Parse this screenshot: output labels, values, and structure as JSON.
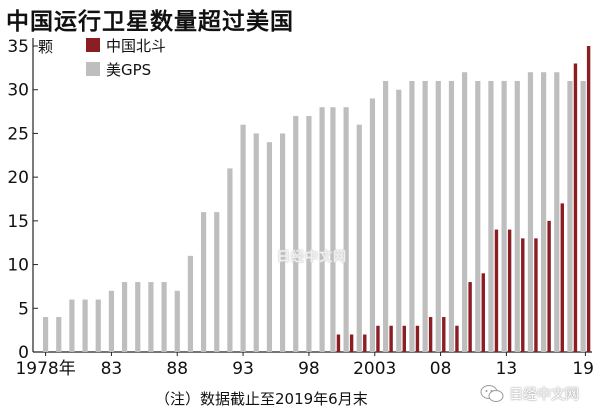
{
  "title": "中国运行卫星数量超过美国",
  "note": "（注）数据截止至2019年6月末",
  "watermarks": {
    "center": "日经中文网",
    "bottom_right": "日经中文网",
    "bottom_right_icon": "wechat-icon"
  },
  "colors": {
    "beidou": "#8b1e22",
    "gps": "#bebebe",
    "axis": "#222222"
  },
  "chart_data": {
    "type": "bar",
    "y_unit_label": "颗",
    "ylim": [
      0,
      35
    ],
    "yticks": [
      0,
      5,
      10,
      15,
      20,
      25,
      30,
      35
    ],
    "grid": false,
    "legend_position": "top-left",
    "x": [
      1978,
      1979,
      1980,
      1981,
      1982,
      1983,
      1984,
      1985,
      1986,
      1987,
      1988,
      1989,
      1990,
      1991,
      1992,
      1993,
      1994,
      1995,
      1996,
      1997,
      1998,
      1999,
      2000,
      2001,
      2002,
      2003,
      2004,
      2005,
      2006,
      2007,
      2008,
      2009,
      2010,
      2011,
      2012,
      2013,
      2014,
      2015,
      2016,
      2017,
      2018,
      2019
    ],
    "xtick_labels": [
      {
        "x": 1978,
        "label": "1978年"
      },
      {
        "x": 1983,
        "label": "83"
      },
      {
        "x": 1988,
        "label": "88"
      },
      {
        "x": 1993,
        "label": "93"
      },
      {
        "x": 1998,
        "label": "98"
      },
      {
        "x": 2003,
        "label": "2003"
      },
      {
        "x": 2008,
        "label": "08"
      },
      {
        "x": 2013,
        "label": "13"
      },
      {
        "x": 2019,
        "label": "19"
      }
    ],
    "series": [
      {
        "name": "中国北斗",
        "color": "#8b1e22",
        "values": [
          0,
          0,
          0,
          0,
          0,
          0,
          0,
          0,
          0,
          0,
          0,
          0,
          0,
          0,
          0,
          0,
          0,
          0,
          0,
          0,
          0,
          0,
          2,
          2,
          2,
          3,
          3,
          3,
          3,
          4,
          4,
          3,
          8,
          9,
          14,
          14,
          13,
          13,
          15,
          17,
          33,
          35
        ]
      },
      {
        "name": "美GPS",
        "color": "#bebebe",
        "values": [
          4,
          4,
          6,
          6,
          6,
          7,
          8,
          8,
          8,
          8,
          7,
          11,
          16,
          16,
          21,
          26,
          25,
          24,
          25,
          27,
          27,
          28,
          28,
          28,
          26,
          29,
          31,
          30,
          31,
          31,
          31,
          31,
          32,
          31,
          31,
          31,
          31,
          32,
          32,
          32,
          31,
          31
        ]
      }
    ]
  }
}
